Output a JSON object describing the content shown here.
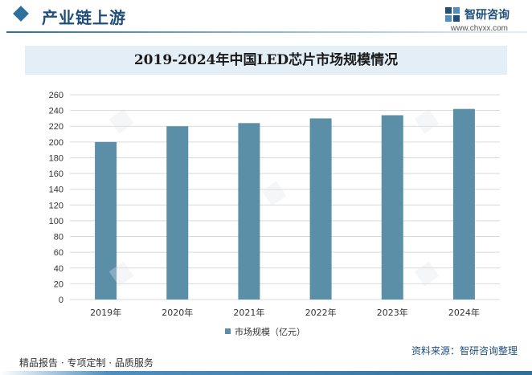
{
  "header": {
    "section_title": "产业链上游",
    "brand_name": "智研咨询",
    "brand_url": "www.chyxx.com"
  },
  "chart_data": {
    "type": "bar",
    "title": "2019-2024年中国LED芯片市场规模情况",
    "categories": [
      "2019年",
      "2020年",
      "2021年",
      "2022年",
      "2023年",
      "2024年"
    ],
    "series": [
      {
        "name": "市场规模（亿元）",
        "values": [
          200,
          220,
          224,
          230,
          234,
          242
        ]
      }
    ],
    "yticks": [
      "0",
      "20",
      "40",
      "60",
      "80",
      "100",
      "120",
      "140",
      "160",
      "180",
      "200",
      "220",
      "240",
      "260"
    ],
    "ylim": [
      0,
      260
    ],
    "grid": true,
    "legend_position": "bottom",
    "bar_color": "#5b8fa8"
  },
  "footer": {
    "left_text": "精品报告 · 专项定制 · 品质服务",
    "source_text": "资料来源：智研咨询整理"
  },
  "colors": {
    "accent": "#1f4e79",
    "bar": "#5b8fa8"
  }
}
